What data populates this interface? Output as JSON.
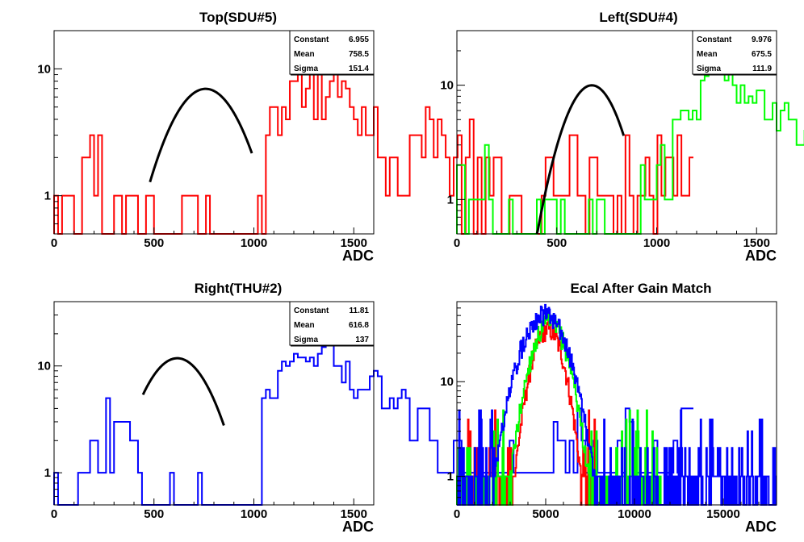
{
  "chart_data": [
    {
      "type": "histogram",
      "title": "Top(SDU#5)",
      "xlabel": "ADC",
      "x_ticks": [
        "0",
        "500",
        "1000",
        "1500"
      ],
      "y_ticks": [
        "1",
        "10"
      ],
      "xlim": [
        0,
        1600
      ],
      "ylim": [
        0.5,
        20
      ],
      "y_scale": "log",
      "stats": [
        [
          "Constant",
          "6.955"
        ],
        [
          "Mean",
          "758.5"
        ],
        [
          "Sigma",
          "151.4"
        ]
      ],
      "bin_width": 20,
      "series": [
        {
          "color": "#ff0000",
          "values": [
            1,
            0,
            1,
            1,
            1,
            0,
            0,
            2,
            2,
            3,
            1,
            3,
            0,
            0,
            0,
            1,
            1,
            0,
            1,
            1,
            1,
            0,
            0,
            1,
            1,
            0,
            0,
            0,
            0,
            0,
            0,
            0,
            1,
            1,
            1,
            1,
            0,
            0,
            1,
            0,
            0,
            0,
            0,
            0,
            0,
            0,
            0,
            0,
            0,
            0,
            0,
            1,
            0,
            3,
            5,
            5,
            3,
            5,
            4,
            8,
            8,
            9,
            5,
            7,
            9,
            4,
            9,
            4,
            6,
            8,
            9,
            6,
            8,
            7,
            5,
            4,
            3,
            5,
            3,
            3,
            5,
            2,
            2,
            1,
            2,
            2,
            1,
            1,
            1,
            3,
            3,
            3,
            2,
            5,
            4,
            2,
            4,
            3,
            2,
            1,
            2,
            3,
            0,
            2,
            4,
            0,
            2,
            0,
            2,
            1,
            2,
            2,
            0,
            0,
            1,
            1,
            1,
            0,
            0,
            0,
            0,
            0,
            1,
            2,
            2,
            1,
            1,
            1,
            1,
            3,
            3,
            1,
            1,
            0,
            2,
            2,
            1,
            1,
            1,
            1,
            0,
            1,
            0,
            3,
            1,
            0,
            1,
            1,
            2,
            1,
            0,
            3,
            1,
            2,
            2,
            1,
            3,
            1,
            1,
            2
          ]
        }
      ],
      "fit": {
        "constant": 6.955,
        "mean": 758.5,
        "sigma": 151.4,
        "range": [
          480,
          990
        ]
      }
    },
    {
      "type": "histogram",
      "title": "Left(SDU#4)",
      "xlabel": "ADC",
      "x_ticks": [
        "0",
        "500",
        "1000",
        "1500"
      ],
      "y_ticks": [
        "1",
        "10"
      ],
      "xlim": [
        0,
        1600
      ],
      "ylim": [
        0.5,
        30
      ],
      "y_scale": "log",
      "stats": [
        [
          "Constant",
          "9.976"
        ],
        [
          "Mean",
          "675.5"
        ],
        [
          "Sigma",
          "111.9"
        ]
      ],
      "bin_width": 20,
      "series": [
        {
          "color": "#00ff00",
          "values": [
            2,
            2,
            0,
            1,
            1,
            1,
            1,
            3,
            1,
            0,
            0,
            0,
            0,
            1,
            0,
            0,
            0,
            0,
            0,
            0,
            1,
            0,
            1,
            1,
            1,
            0,
            1,
            0,
            0,
            0,
            0,
            0,
            0,
            1,
            0,
            1,
            1,
            0,
            0,
            0,
            0,
            0,
            0,
            0,
            0,
            0,
            2,
            1,
            1,
            1,
            2,
            3,
            1,
            1,
            5,
            5,
            6,
            6,
            5,
            6,
            5,
            11,
            12,
            14,
            16,
            15,
            13,
            11,
            14,
            10,
            7,
            10,
            7,
            8,
            7,
            9,
            9,
            5,
            5,
            7,
            4,
            6,
            7,
            5,
            5,
            3,
            3,
            4,
            6,
            5,
            5,
            5,
            4,
            6,
            4,
            4,
            4,
            5,
            2,
            3,
            3,
            3,
            4,
            2,
            3,
            2,
            2,
            2,
            2,
            2,
            1,
            1,
            1,
            1,
            1,
            1,
            1,
            0,
            0,
            0,
            0,
            0,
            0,
            2,
            2,
            2,
            1,
            1,
            2,
            1,
            1,
            1,
            2,
            1,
            2,
            2,
            1,
            1,
            1,
            1,
            1,
            1,
            1,
            1,
            1,
            1,
            1,
            1,
            1,
            1,
            1,
            2,
            1,
            1,
            1,
            1,
            1,
            0,
            1,
            2
          ]
        }
      ],
      "fit": {
        "constant": 9.976,
        "mean": 675.5,
        "sigma": 111.9,
        "range": [
          400,
          835
        ]
      }
    },
    {
      "type": "histogram",
      "title": "Right(THU#2)",
      "xlabel": "ADC",
      "x_ticks": [
        "0",
        "500",
        "1000",
        "1500"
      ],
      "y_ticks": [
        "1",
        "10"
      ],
      "xlim": [
        0,
        1600
      ],
      "ylim": [
        0.5,
        40
      ],
      "y_scale": "log",
      "stats": [
        [
          "Constant",
          "11.81"
        ],
        [
          "Mean",
          "616.8"
        ],
        [
          "Sigma",
          "137"
        ]
      ],
      "bin_width": 20,
      "series": [
        {
          "color": "#0000ff",
          "values": [
            1,
            0,
            0,
            0,
            0,
            0,
            1,
            1,
            1,
            2,
            2,
            1,
            1,
            5,
            1,
            3,
            3,
            3,
            3,
            2,
            2,
            1,
            0,
            0,
            0,
            0,
            0,
            0,
            0,
            1,
            0,
            0,
            0,
            0,
            0,
            0,
            1,
            0,
            0,
            0,
            0,
            0,
            0,
            0,
            0,
            0,
            0,
            0,
            0,
            0,
            0,
            0,
            5,
            6,
            5,
            5,
            9,
            11,
            10,
            11,
            13,
            12,
            12,
            11,
            12,
            10,
            13,
            15,
            17,
            19,
            10,
            10,
            7,
            11,
            6,
            5,
            6,
            6,
            6,
            8,
            9,
            8,
            4,
            4,
            5,
            4,
            5,
            6,
            5,
            2,
            2,
            4,
            4,
            4,
            2,
            2,
            1,
            1,
            1,
            1,
            2,
            2,
            1,
            1,
            1,
            1,
            1,
            1,
            1,
            1,
            1,
            1,
            1,
            1,
            2,
            1,
            1,
            1,
            1,
            1,
            1,
            1,
            1,
            1,
            1,
            3,
            2,
            2,
            1,
            2,
            1,
            4,
            2,
            1,
            1,
            2,
            1,
            1,
            1,
            1,
            1,
            2,
            1,
            4,
            3,
            1,
            1,
            1,
            1,
            1,
            2,
            1,
            1,
            1,
            1,
            2,
            1,
            4,
            4,
            4
          ]
        }
      ],
      "fit": {
        "constant": 11.81,
        "mean": 616.8,
        "sigma": 137,
        "range": [
          445,
          850
        ]
      }
    },
    {
      "type": "histogram",
      "title": "Ecal After Gain Match",
      "xlabel": "ADC",
      "x_ticks": [
        "0",
        "5000",
        "10000",
        "15000"
      ],
      "y_ticks": [
        "1",
        "10"
      ],
      "xlim": [
        0,
        18000
      ],
      "ylim": [
        0.5,
        70
      ],
      "y_scale": "log",
      "overlay": [
        {
          "color": "#ff0000",
          "mean": 5100,
          "sigma": 700,
          "peak": 36,
          "lo": 500,
          "hi": 7800
        },
        {
          "color": "#00ff00",
          "mean": 5200,
          "sigma": 800,
          "peak": 42,
          "lo": 0,
          "hi": 11500
        },
        {
          "color": "#0000ff",
          "mean": 4900,
          "sigma": 1000,
          "peak": 52,
          "lo": 0,
          "hi": 18000
        }
      ]
    }
  ]
}
